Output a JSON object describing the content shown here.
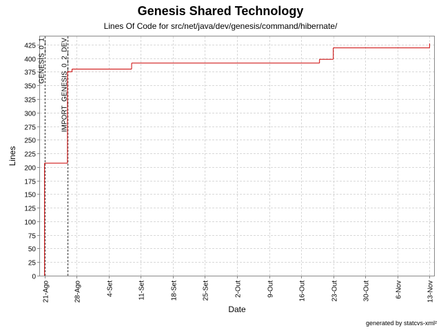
{
  "chart_data": {
    "type": "line",
    "title": "Genesis Shared Technology",
    "subtitle": "Lines Of Code for src/net/java/dev/genesis/command/hibernate/",
    "xlabel": "Date",
    "ylabel": "Lines",
    "footer": "generated by statcvs-xml²",
    "x_tick_labels": [
      "21-Ago",
      "28-Ago",
      "4-Set",
      "11-Set",
      "18-Set",
      "25-Set",
      "2-Out",
      "9-Out",
      "16-Out",
      "23-Out",
      "30-Out",
      "6-Nov",
      "13-Nov"
    ],
    "y_ticks": [
      0,
      25,
      50,
      75,
      100,
      125,
      150,
      175,
      200,
      225,
      250,
      275,
      300,
      325,
      350,
      375,
      400,
      425
    ],
    "xlim": [
      "2004-08-20",
      "2004-11-14"
    ],
    "ylim": [
      0,
      440
    ],
    "grid": true,
    "series": [
      {
        "color": "#cc0000",
        "points": [
          {
            "x": "2004-08-21",
            "y": 0
          },
          {
            "x": "2004-08-21",
            "y": 207
          },
          {
            "x": "2004-08-26",
            "y": 207
          },
          {
            "x": "2004-08-26",
            "y": 375
          },
          {
            "x": "2004-08-27",
            "y": 375
          },
          {
            "x": "2004-08-27",
            "y": 380
          },
          {
            "x": "2004-09-09",
            "y": 380
          },
          {
            "x": "2004-09-09",
            "y": 391
          },
          {
            "x": "2004-10-20",
            "y": 391
          },
          {
            "x": "2004-10-20",
            "y": 398
          },
          {
            "x": "2004-10-23",
            "y": 398
          },
          {
            "x": "2004-10-23",
            "y": 419
          },
          {
            "x": "2004-11-13",
            "y": 419
          },
          {
            "x": "2004-11-13",
            "y": 427
          }
        ]
      }
    ],
    "markers": [
      {
        "label": "GENESIS_0_1",
        "x": "2004-08-21"
      },
      {
        "label": "IMPORT_GENESIS_0_2_DEV",
        "x": "2004-08-26"
      }
    ]
  }
}
